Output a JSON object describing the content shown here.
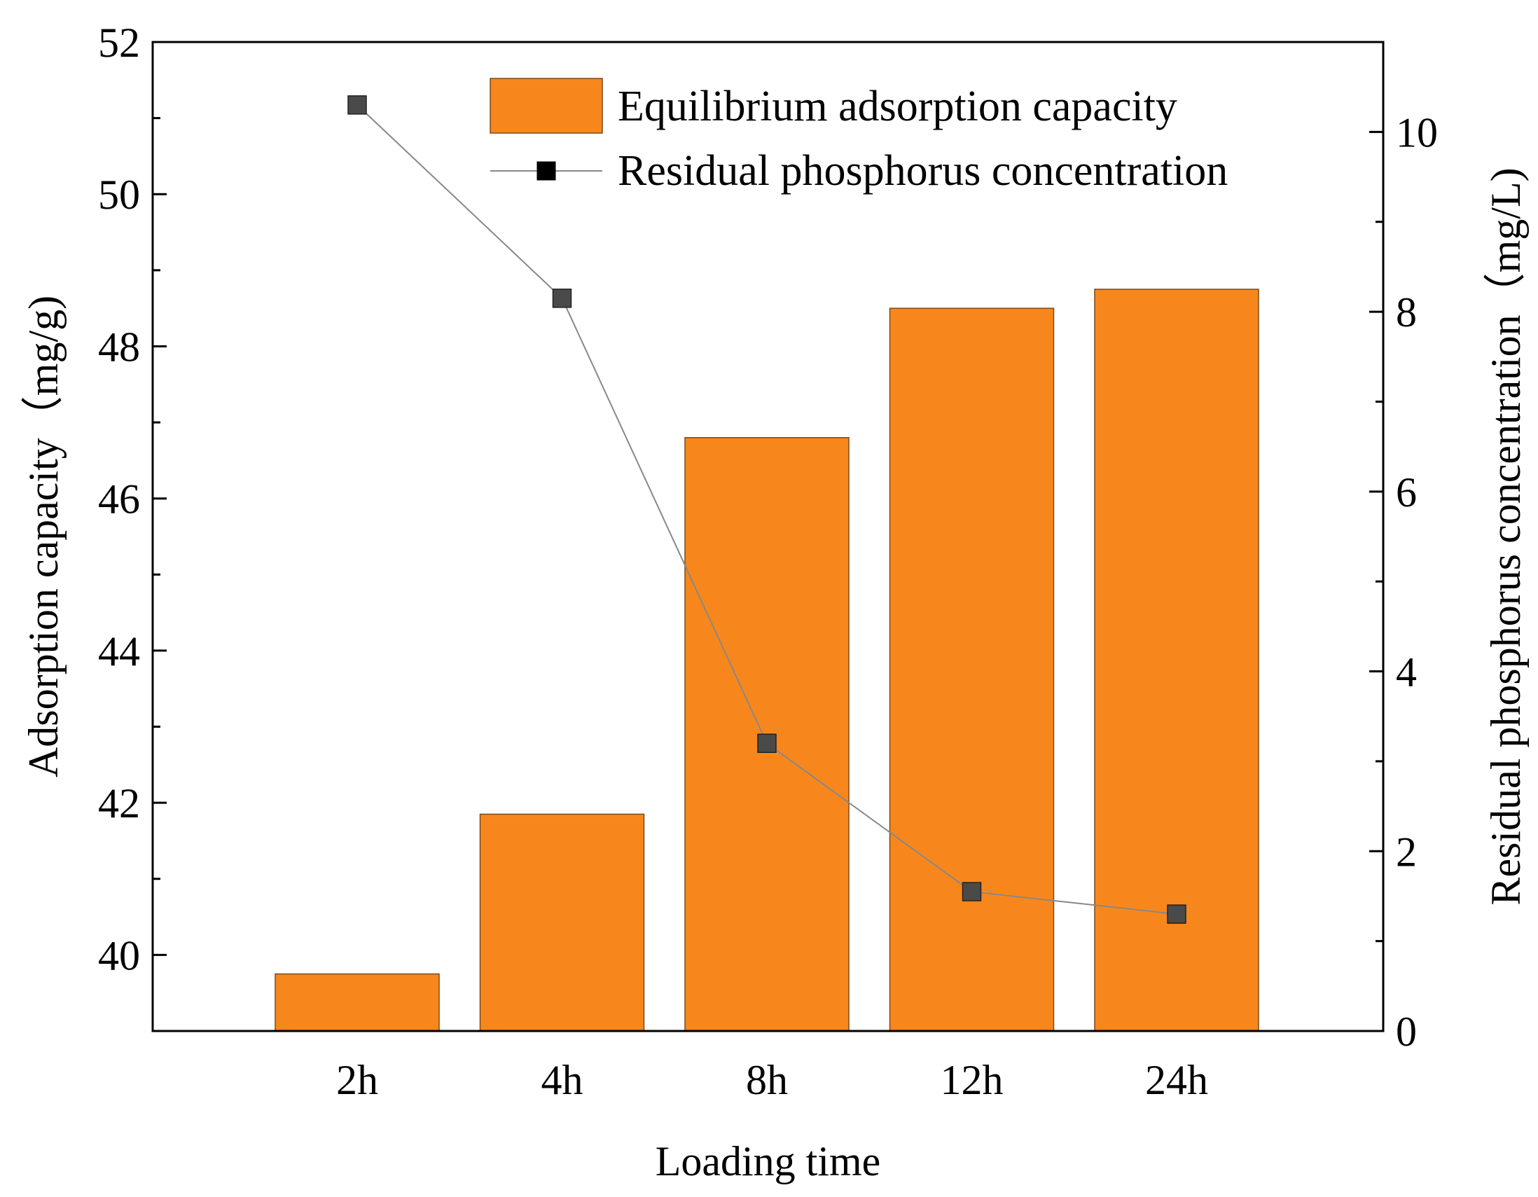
{
  "chart_data": {
    "type": "bar",
    "categories": [
      "2h",
      "4h",
      "8h",
      "12h",
      "24h"
    ],
    "xlabel": "Loading time",
    "ylabel": "Adsorption capacity（mg/g)",
    "y2label": "Residual phosphorus concentration（mg/L)",
    "ylim": [
      39,
      52
    ],
    "yticks": [
      "40",
      "42",
      "44",
      "46",
      "48",
      "50",
      "52"
    ],
    "y2lim": [
      0,
      11
    ],
    "y2ticks": [
      "0",
      "2",
      "4",
      "6",
      "8",
      "10"
    ],
    "legend_position": "top-right",
    "series": [
      {
        "name": "Equilibrium adsorption capacity",
        "type": "bar",
        "axis": "left",
        "color": "#f7871c",
        "values": [
          39.75,
          41.85,
          46.8,
          48.5,
          48.75
        ]
      },
      {
        "name": "Residual phosphorus concentration",
        "type": "line",
        "axis": "right",
        "color": "#888888",
        "marker_color": "#4a4a4a",
        "values": [
          10.3,
          8.15,
          3.2,
          1.55,
          1.3
        ]
      }
    ]
  }
}
